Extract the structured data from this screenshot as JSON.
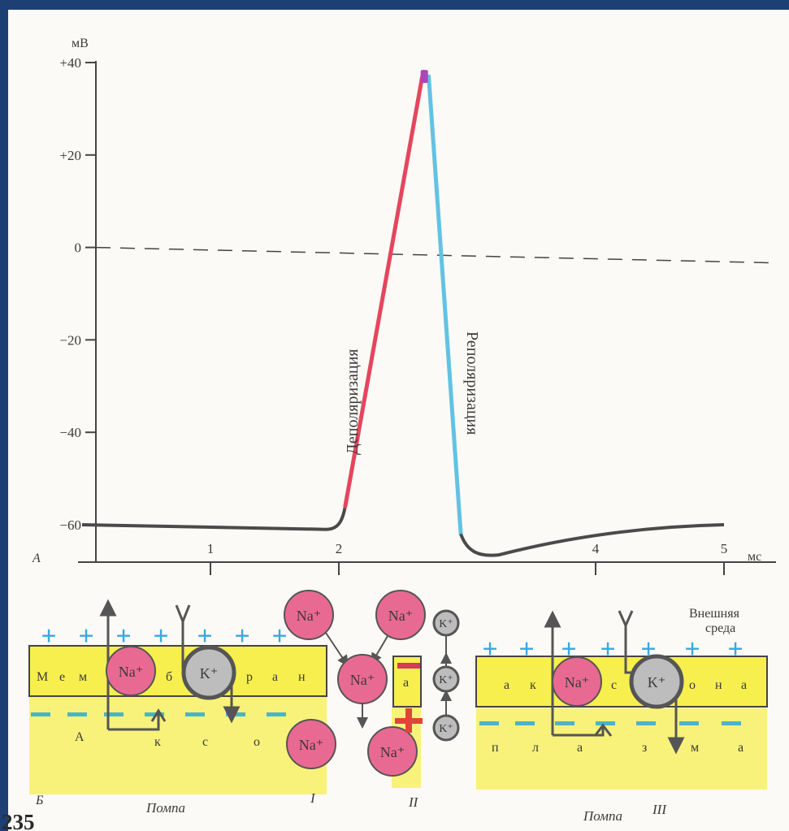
{
  "colors": {
    "frame": "#1e3f73",
    "paper": "#fbfaf6",
    "axis": "#444444",
    "trace_rest": "#4a4a4a",
    "depolarization": "#e4465e",
    "repolarization": "#62c2e4",
    "peak": "#b044b4",
    "membrane": "#f6ef4e",
    "axoplasm": "#f8f27a",
    "sodium": "#e86a92",
    "potassium": "#bdbdbd",
    "plus": "#38a8e0",
    "minus": "#4ab4c8",
    "gate_minus": "#d43a5a",
    "gate_plus": "#e0443a"
  },
  "panel_a_label": "А",
  "chart_data": {
    "type": "line",
    "ylabel": "мВ",
    "xlabel": "мс",
    "xlim": [
      0,
      5
    ],
    "ylim": [
      -60,
      40
    ],
    "yticks": [
      "+40",
      "+20",
      "0",
      "−20",
      "−40",
      "−60"
    ],
    "xticks": [
      "1",
      "2",
      "4",
      "5"
    ],
    "series": [
      {
        "name": "Деполяризация",
        "color": "#e4465e",
        "x": [
          2.05,
          2.65
        ],
        "y": [
          -56,
          37
        ]
      },
      {
        "name": "Реполяризация",
        "color": "#62c2e4",
        "x": [
          2.7,
          2.95
        ],
        "y": [
          37,
          -62
        ]
      }
    ],
    "baseline": {
      "x": [
        0,
        1.9,
        2.05
      ],
      "y": [
        -60,
        -61,
        -56
      ]
    },
    "afterpotential": {
      "x": [
        2.95,
        3.05,
        3.2,
        3.6,
        4.2,
        5.0
      ],
      "y": [
        -62,
        -66,
        -66.5,
        -63,
        -61,
        -60
      ]
    },
    "zero_line": {
      "x": [
        0,
        5.4
      ],
      "y": [
        0,
        -3
      ]
    },
    "annotations": [
      "Деполяризация",
      "Реполяризация"
    ]
  },
  "panel_b": {
    "label": "Б",
    "outside_label_1": "Внешняя",
    "outside_label_2": "среда",
    "plus": "+",
    "minus": "−",
    "sodium": "Na⁺",
    "potassium": "K⁺",
    "left_membrane_letters": [
      "М",
      "е",
      "м",
      "б",
      "р",
      "а",
      "н"
    ],
    "left_axo_letters": [
      "А",
      "к",
      "с",
      "о"
    ],
    "gate_letter": "а",
    "right_membrane_letters": [
      "а",
      "к",
      "с",
      "о",
      "н",
      "а"
    ],
    "right_axo_letters": [
      "п",
      "л",
      "а",
      "з",
      "м",
      "а"
    ],
    "pump_left": "Помпа",
    "pump_right": "Помпа",
    "stage_1": "I",
    "stage_2": "II",
    "stage_3": "III",
    "page_number": "235"
  }
}
